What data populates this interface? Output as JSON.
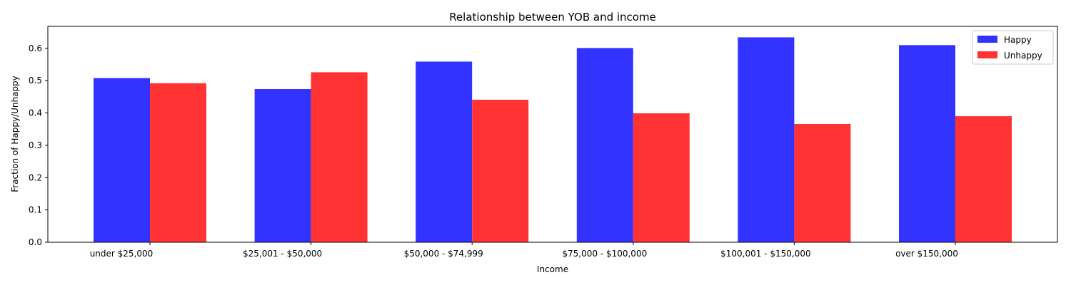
{
  "chart_data": {
    "type": "bar",
    "title": "Relationship between YOB and income",
    "xlabel": "Income",
    "ylabel": "Fraction of Happy/Unhappy",
    "categories": [
      "under $25,000",
      "$25,001 - $50,000",
      "$50,000 - $74,999",
      "$75,000 - $100,000",
      "$100,001 - $150,000",
      "over $150,000"
    ],
    "series": [
      {
        "name": "Happy",
        "color": "#3333ff",
        "values": [
          0.508,
          0.474,
          0.559,
          0.601,
          0.634,
          0.61
        ]
      },
      {
        "name": "Unhappy",
        "color": "#ff3333",
        "values": [
          0.492,
          0.526,
          0.441,
          0.399,
          0.366,
          0.39
        ]
      }
    ],
    "ylim": [
      0,
      0.668
    ],
    "yticks": [
      "0.0",
      "0.1",
      "0.2",
      "0.3",
      "0.4",
      "0.5",
      "0.6"
    ],
    "grid": false,
    "legend_position": "top-right"
  }
}
